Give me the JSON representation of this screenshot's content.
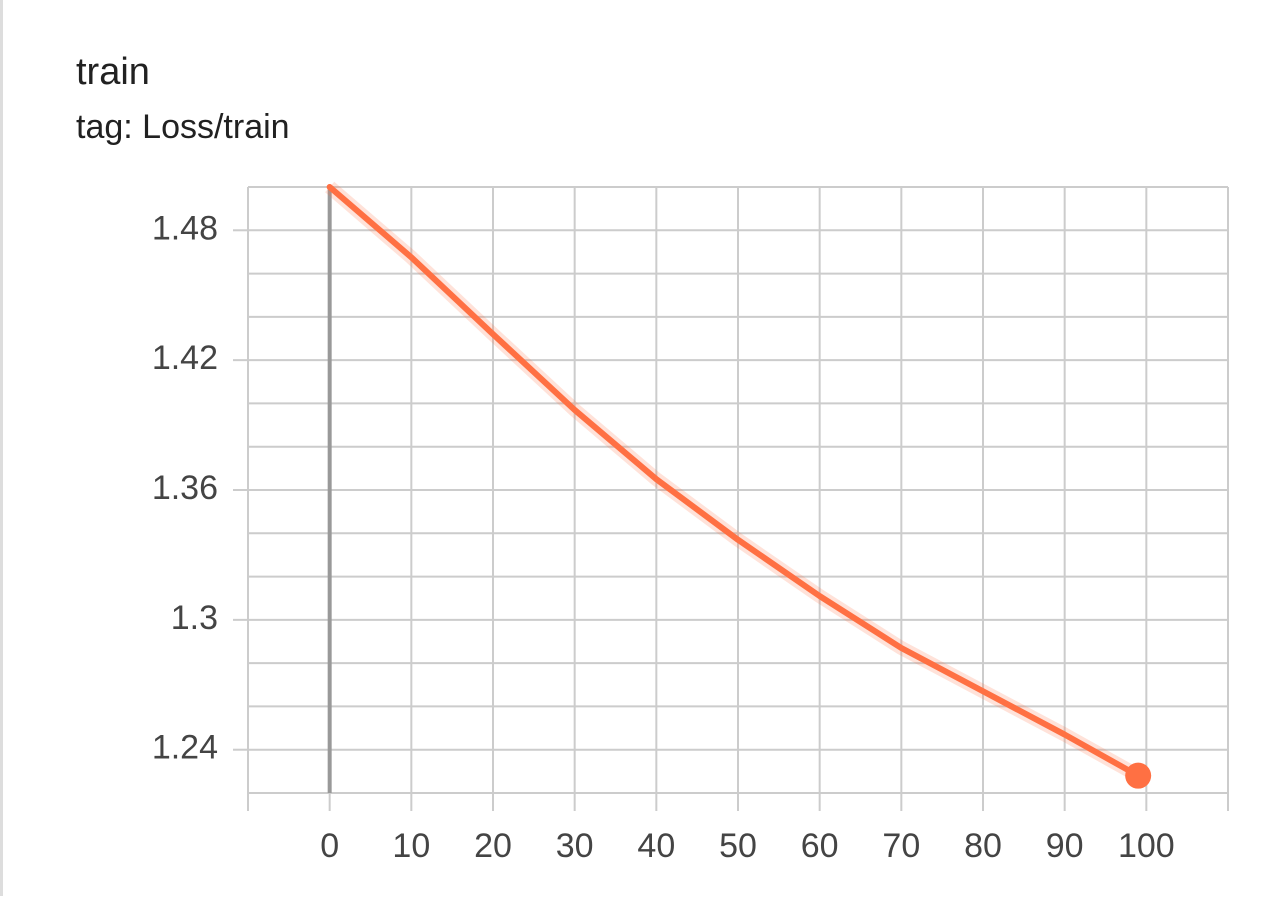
{
  "chart_data": {
    "type": "line",
    "title": "train",
    "subtitle": "tag: Loss/train",
    "x": [
      0,
      10,
      20,
      30,
      40,
      50,
      60,
      70,
      80,
      90,
      99
    ],
    "series": [
      {
        "color": "#ff7043",
        "values": [
          1.5,
          1.4675,
          1.432,
          1.397,
          1.365,
          1.337,
          1.311,
          1.287,
          1.267,
          1.247,
          1.228
        ]
      }
    ],
    "xlim": [
      -10,
      110
    ],
    "xticks": [
      0,
      10,
      20,
      30,
      40,
      50,
      60,
      70,
      80,
      90,
      100
    ],
    "ylim": [
      1.22,
      1.5
    ],
    "yticks": [
      1.24,
      1.3,
      1.36,
      1.42,
      1.48
    ],
    "ygrid": [
      1.22,
      1.24,
      1.26,
      1.28,
      1.3,
      1.32,
      1.34,
      1.36,
      1.38,
      1.4,
      1.42,
      1.44,
      1.46,
      1.48,
      1.5
    ],
    "grid": true
  }
}
